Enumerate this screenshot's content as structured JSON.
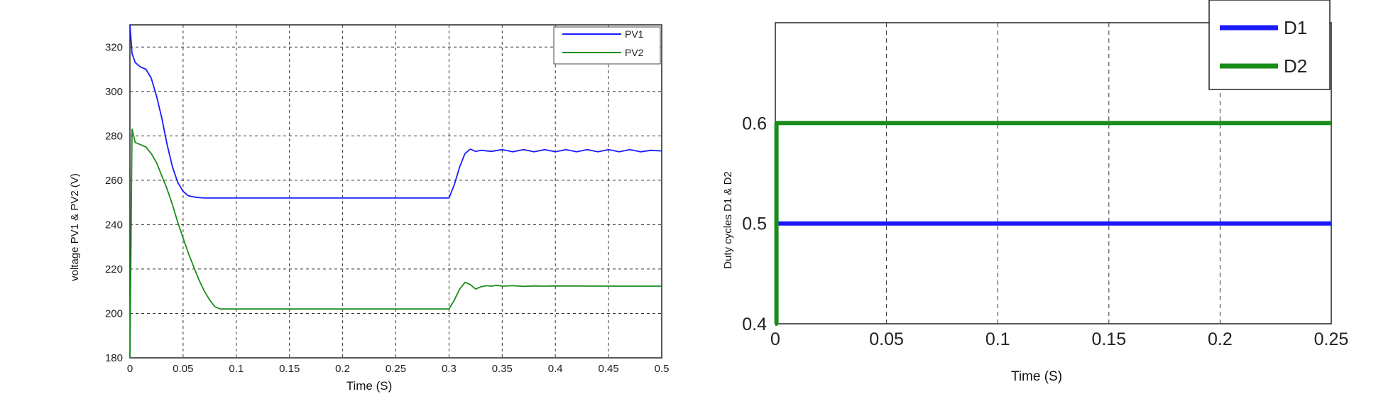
{
  "chart_data": [
    {
      "type": "line",
      "xlabel": "Time (S)",
      "ylabel": "voltage PV1 & PV2 (V)",
      "xlim": [
        0,
        0.5
      ],
      "ylim": [
        180,
        330
      ],
      "x_ticks": [
        0,
        0.05,
        0.1,
        0.15,
        0.2,
        0.25,
        0.3,
        0.35,
        0.4,
        0.45,
        0.5
      ],
      "x_tick_labels": [
        "0",
        "0.05",
        "0.1",
        "0.15",
        "0.2",
        "0.25",
        "0.3",
        "0.35",
        "0.4",
        "0.45",
        "0.5"
      ],
      "y_ticks": [
        180,
        200,
        220,
        240,
        260,
        280,
        300,
        320
      ],
      "y_tick_labels": [
        "180",
        "200",
        "220",
        "240",
        "260",
        "280",
        "300",
        "320"
      ],
      "grid": true,
      "legend": "top-right",
      "series": [
        {
          "name": "PV1",
          "color": "#1a1aff",
          "x": [
            0,
            0.002,
            0.005,
            0.01,
            0.015,
            0.02,
            0.025,
            0.03,
            0.035,
            0.04,
            0.045,
            0.05,
            0.055,
            0.06,
            0.065,
            0.07,
            0.1,
            0.2,
            0.3,
            0.305,
            0.31,
            0.315,
            0.32,
            0.325,
            0.33,
            0.34,
            0.35,
            0.36,
            0.37,
            0.38,
            0.39,
            0.4,
            0.41,
            0.42,
            0.43,
            0.44,
            0.45,
            0.46,
            0.47,
            0.48,
            0.49,
            0.5
          ],
          "y": [
            330,
            317,
            313,
            311,
            310,
            306,
            298,
            288,
            276,
            266,
            259,
            255,
            253,
            252.5,
            252.2,
            252,
            252,
            252,
            252,
            258,
            266,
            272,
            274,
            273,
            273.5,
            273,
            273.8,
            272.8,
            273.8,
            272.8,
            273.8,
            272.8,
            273.8,
            272.8,
            273.8,
            272.8,
            273.8,
            272.8,
            273.8,
            272.8,
            273.5,
            273.2
          ]
        },
        {
          "name": "PV2",
          "color": "#1a8c1a",
          "x": [
            0,
            0.002,
            0.005,
            0.01,
            0.015,
            0.02,
            0.025,
            0.03,
            0.035,
            0.04,
            0.045,
            0.05,
            0.055,
            0.06,
            0.065,
            0.07,
            0.075,
            0.08,
            0.085,
            0.09,
            0.1,
            0.2,
            0.3,
            0.305,
            0.31,
            0.315,
            0.32,
            0.325,
            0.33,
            0.335,
            0.34,
            0.345,
            0.35,
            0.36,
            0.37,
            0.38,
            0.39,
            0.4,
            0.45,
            0.5
          ],
          "y": [
            180,
            283,
            277,
            276,
            275,
            272,
            268,
            262,
            256,
            249,
            241,
            234,
            227,
            221,
            215,
            210,
            206,
            203,
            202,
            202,
            202,
            202,
            202,
            206,
            211,
            214,
            213,
            211,
            212,
            212.5,
            212.3,
            212.7,
            212.3,
            212.5,
            212.2,
            212.4,
            212.3,
            212.4,
            212.3,
            212.3
          ]
        }
      ]
    },
    {
      "type": "line",
      "xlabel": "Time (S)",
      "ylabel": "Duty cycles D1 & D2",
      "xlim": [
        0,
        0.25
      ],
      "ylim": [
        0.4,
        0.7
      ],
      "x_ticks": [
        0,
        0.05,
        0.1,
        0.15,
        0.2,
        0.25
      ],
      "x_tick_labels": [
        "0",
        "0.05",
        "0.1",
        "0.15",
        "0.2",
        "0.25"
      ],
      "y_ticks": [
        0.4,
        0.5,
        0.6
      ],
      "y_tick_labels": [
        "0.4",
        "0.5",
        "0.6"
      ],
      "grid": true,
      "legend": "top-right",
      "series": [
        {
          "name": "D1",
          "color": "#1a1aff",
          "x": [
            0,
            0.25
          ],
          "y": [
            0.5,
            0.5
          ]
        },
        {
          "name": "D2",
          "color": "#1a8c1a",
          "x": [
            0,
            0.0005,
            0.0005,
            0.25
          ],
          "y": [
            0.4,
            0.4,
            0.6,
            0.6
          ]
        }
      ]
    }
  ]
}
